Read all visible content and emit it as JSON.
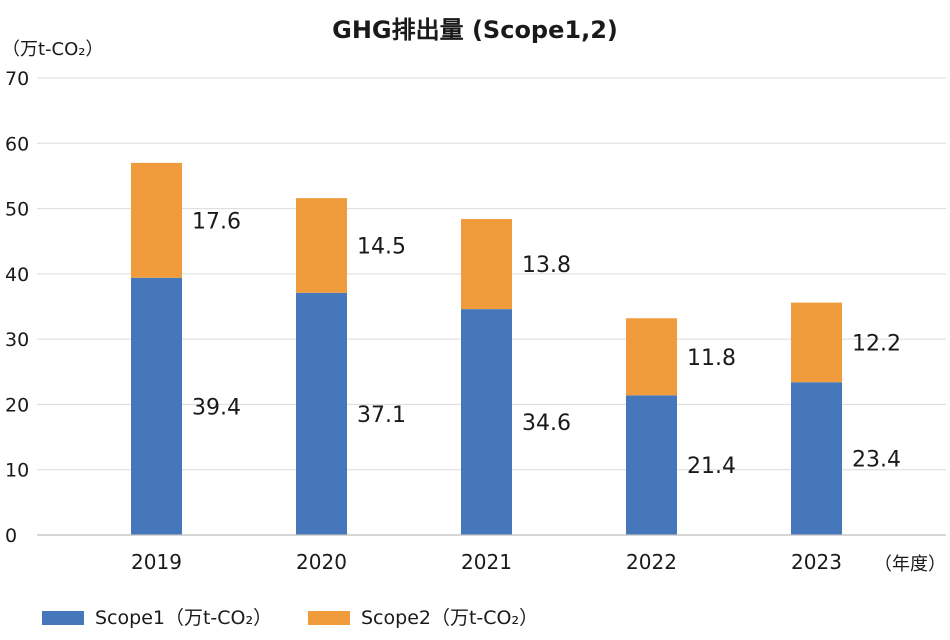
{
  "chart_data": {
    "type": "bar",
    "stacked": true,
    "title": "GHG排出量 (Scope1,2)",
    "ylabel": "（万t-CO₂）",
    "xlabel": "（年度）",
    "ylim": [
      0,
      70
    ],
    "yticks": [
      0,
      10,
      20,
      30,
      40,
      50,
      60,
      70
    ],
    "grid": true,
    "legend_position": "bottom-left",
    "categories": [
      "2019",
      "2020",
      "2021",
      "2022",
      "2023"
    ],
    "series": [
      {
        "name": "Scope1（万t-CO₂）",
        "color": "#4677bb",
        "values": [
          39.4,
          37.1,
          34.6,
          21.4,
          23.4
        ]
      },
      {
        "name": "Scope2（万t-CO₂）",
        "color": "#f09c3c",
        "values": [
          17.6,
          14.5,
          13.8,
          11.8,
          12.2
        ]
      }
    ],
    "data_labels": {
      "Scope1": [
        "39.4",
        "37.1",
        "34.6",
        "21.4",
        "23.4"
      ],
      "Scope2": [
        "17.6",
        "14.5",
        "13.8",
        "11.8",
        "12.2"
      ]
    }
  }
}
